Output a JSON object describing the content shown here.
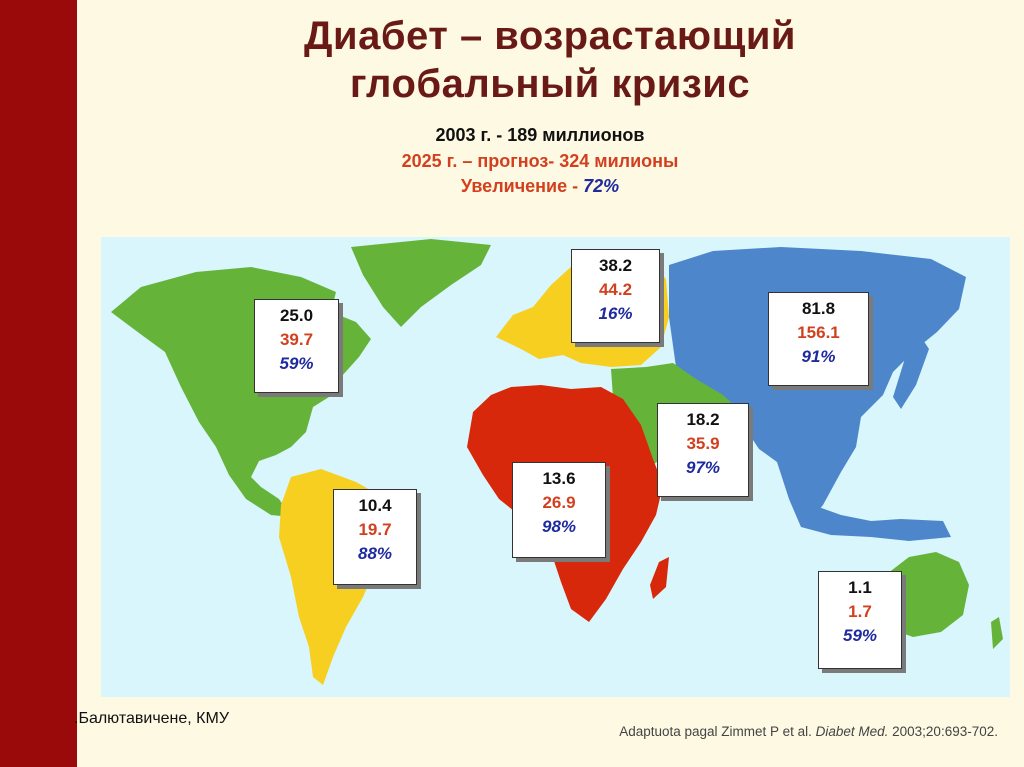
{
  "title": {
    "line1": "Диабет – возрастающий",
    "line2": "глобальный кризис"
  },
  "summary": {
    "line1": "2003 г. -  189 миллионов",
    "line2": "2025 г. – прогноз- 324 милионы",
    "line3_label": "Увеличение - ",
    "line3_value": "72%"
  },
  "regions": [
    {
      "name": "north-america",
      "v2003": "25.0",
      "v2025": "39.7",
      "increase": "59%"
    },
    {
      "name": "europe",
      "v2003": "38.2",
      "v2025": "44.2",
      "increase": "16%"
    },
    {
      "name": "asia",
      "v2003": "81.8",
      "v2025": "156.1",
      "increase": "91%"
    },
    {
      "name": "middle-east",
      "v2003": "18.2",
      "v2025": "35.9",
      "increase": "97%"
    },
    {
      "name": "africa",
      "v2003": "13.6",
      "v2025": "26.9",
      "increase": "98%"
    },
    {
      "name": "south-america",
      "v2003": "10.4",
      "v2025": "19.7",
      "increase": "88%"
    },
    {
      "name": "oceania",
      "v2003": "1.1",
      "v2025": "1.7",
      "increase": "59%"
    }
  ],
  "author": ".Балютавичене, КМУ",
  "citation": {
    "prefix": "Adaptuota pagal Zimmet P et al. ",
    "journal": "Diabet Med.",
    "suffix": " 2003;20:693-702."
  },
  "colors": {
    "side_bar": "#9a0a0a",
    "title": "#6a1a16",
    "ocean": "#d8f6fb",
    "north_america": "#66b33a",
    "south_america": "#f6cf21",
    "europe": "#f6cf21",
    "africa": "#d8280c",
    "middle_east": "#66b33a",
    "asia": "#4e86cc",
    "oceania": "#66b33a",
    "value_2025": "#d3401f",
    "increase": "#1e2a9e"
  }
}
